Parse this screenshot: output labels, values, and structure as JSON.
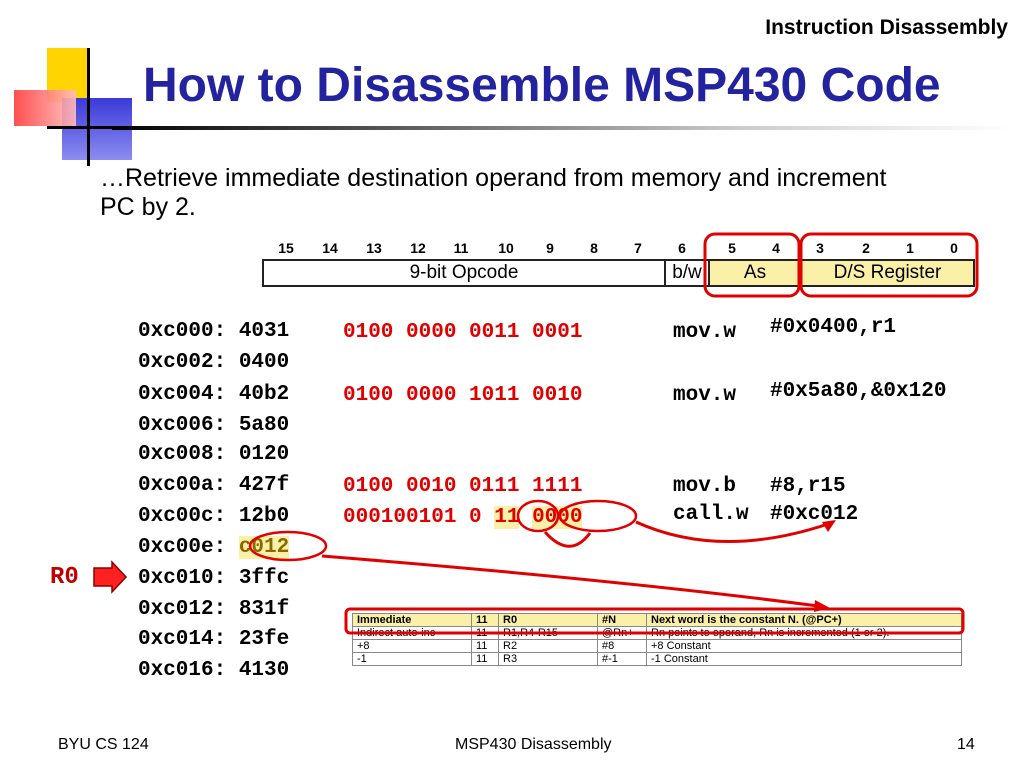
{
  "header": {
    "right": "Instruction Disassembly"
  },
  "title": "How to Disassemble MSP430 Code",
  "subtitle": "…Retrieve immediate destination operand from memory and increment PC by 2.",
  "bit_numbers": [
    "15",
    "14",
    "13",
    "12",
    "11",
    "10",
    "9",
    "8",
    "7",
    "6",
    "5",
    "4",
    "3",
    "2",
    "1",
    "0"
  ],
  "register_fields": {
    "opcode": "9-bit Opcode",
    "bw": "b/w",
    "as": "As",
    "ds": "D/S Register"
  },
  "listing": [
    {
      "addr": "0xc000:",
      "val": "4031",
      "bits": "0100 0000 0011 0001",
      "mnemonic": "mov.w",
      "operand": "#0x0400,r1"
    },
    {
      "addr": "0xc002:",
      "val": "0400",
      "bits": "",
      "mnemonic": "",
      "operand": ""
    },
    {
      "addr": "0xc004:",
      "val": "40b2",
      "bits": "0100 0000 1011 0010",
      "mnemonic": "mov.w",
      "operand": "#0x5a80,&0x120"
    },
    {
      "addr": "0xc006:",
      "val": "5a80",
      "bits": "",
      "mnemonic": "",
      "operand": ""
    },
    {
      "addr": "0xc008:",
      "val": "0120",
      "bits": "",
      "mnemonic": "",
      "operand": ""
    },
    {
      "addr": "0xc00a:",
      "val": "427f",
      "bits": "0100 0010 0111 1111",
      "mnemonic": "mov.b",
      "operand": "#8,r15"
    },
    {
      "addr": "0xc00c:",
      "val": "12b0",
      "bits_a": "000100101 0",
      "bits_b": "11",
      "bits_c": "0000",
      "mnemonic": "call.w",
      "operand": "#0xc012"
    },
    {
      "addr": "0xc00e:",
      "val": "c012",
      "bits": "",
      "mnemonic": "",
      "operand": ""
    },
    {
      "addr": "0xc010:",
      "val": "3ffc",
      "bits": "",
      "mnemonic": "",
      "operand": ""
    },
    {
      "addr": "0xc012:",
      "val": "831f",
      "bits": "",
      "mnemonic": "",
      "operand": ""
    },
    {
      "addr": "0xc014:",
      "val": "23fe",
      "bits": "",
      "mnemonic": "",
      "operand": ""
    },
    {
      "addr": "0xc016:",
      "val": "4130",
      "bits": "",
      "mnemonic": "",
      "operand": ""
    }
  ],
  "pc_label": "R0",
  "mode_table": [
    [
      "Immediate",
      "11",
      "R0",
      "#N",
      "Next word is the constant N. (@PC+)"
    ],
    [
      "Indirect auto-inc",
      "11",
      "R1,R4-R15",
      "@Rn+",
      "Rn points to operand, Rn is incremented (1 or 2)."
    ],
    [
      "+8",
      "11",
      "R2",
      "#8",
      "+8 Constant"
    ],
    [
      "-1",
      "11",
      "R3",
      "#-1",
      "-1 Constant"
    ]
  ],
  "footer": {
    "left": "BYU CS 124",
    "center": "MSP430 Disassembly",
    "right": "14"
  },
  "colors": {
    "title": "#2323a0",
    "highlight_red": "#e00000",
    "yellow": "#fbf0a8"
  }
}
